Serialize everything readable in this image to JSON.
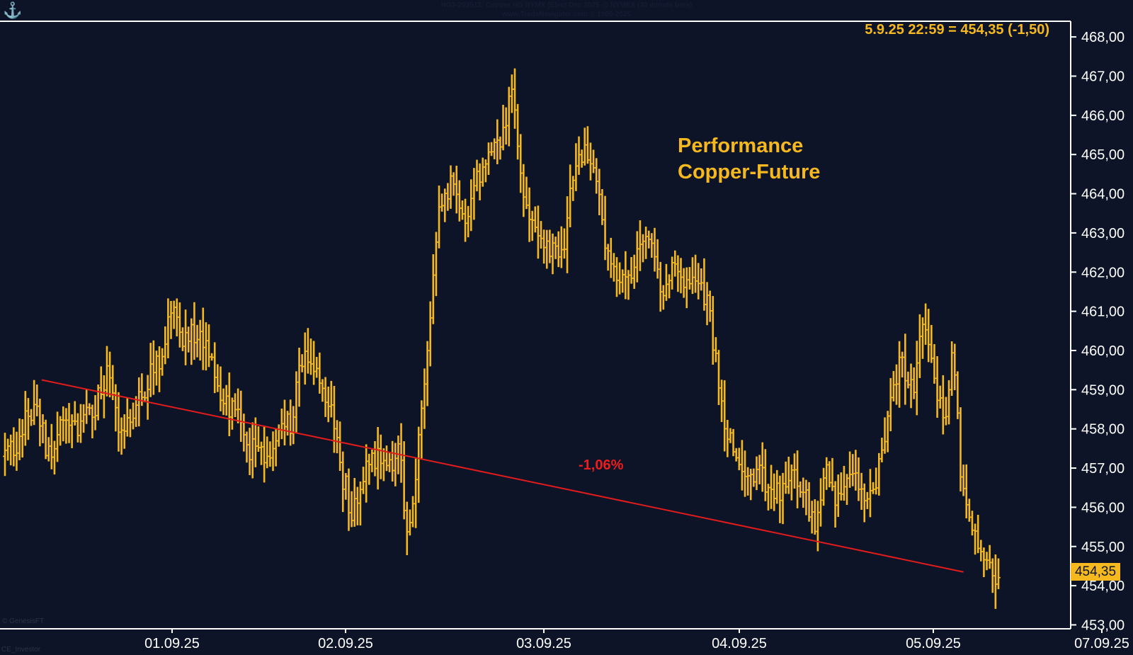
{
  "header": {
    "line1": "HG3-202512:  Copper HG NYMX (Elec) Dec 2025 @ NYMEX  (30 minute bars)",
    "line2": "www.TradeNavigator.com © 1999-2025"
  },
  "readout": "5.9.25 22:59 = 454,35 (-1,50)",
  "annotation": {
    "line1": "Performance",
    "line2": "Copper-Future"
  },
  "trend": {
    "label": "-1,06%",
    "start": [
      1.8,
      459.25
    ],
    "end": [
      47.0,
      454.35
    ],
    "color": "#e31b1b"
  },
  "last_price_label": "454,35",
  "footer": {
    "source": "© GenesisFT",
    "byline": "CE_Investor"
  },
  "colors": {
    "background": "#0d1428",
    "bars": "#f5b81f",
    "axis": "#ffffff",
    "trend": "#e31b1b"
  },
  "chart_data": {
    "type": "ohlc",
    "x_axis_ticks": [
      "01.09.25",
      "02.09.25",
      "03.09.25",
      "04.09.25",
      "05.09.25",
      "07.09.25"
    ],
    "y_axis_ticks": [
      "453,00",
      "454,00",
      "455,00",
      "456,00",
      "457,00",
      "458,00",
      "459,00",
      "460,00",
      "461,00",
      "462,00",
      "463,00",
      "464,00",
      "465,00",
      "466,00",
      "467,00",
      "468,00"
    ],
    "ylim": [
      452.9,
      468.4
    ],
    "grid": false,
    "anchors": [
      [
        0.0,
        457.3
      ],
      [
        0.8,
        457.9
      ],
      [
        1.5,
        458.7
      ],
      [
        2.2,
        457.2
      ],
      [
        3.0,
        458.5
      ],
      [
        3.6,
        458.0
      ],
      [
        4.2,
        458.3
      ],
      [
        5.0,
        459.3
      ],
      [
        5.6,
        458.1
      ],
      [
        6.3,
        458.6
      ],
      [
        7.0,
        459.2
      ],
      [
        7.6,
        459.8
      ],
      [
        8.2,
        461.0
      ],
      [
        8.7,
        460.3
      ],
      [
        9.3,
        460.5
      ],
      [
        10.0,
        459.8
      ],
      [
        10.6,
        458.8
      ],
      [
        11.3,
        458.3
      ],
      [
        12.0,
        457.5
      ],
      [
        12.6,
        457.2
      ],
      [
        13.2,
        457.5
      ],
      [
        14.0,
        458.2
      ],
      [
        14.6,
        459.9
      ],
      [
        15.2,
        459.3
      ],
      [
        15.8,
        458.8
      ],
      [
        16.4,
        457.2
      ],
      [
        17.0,
        455.8
      ],
      [
        17.6,
        456.9
      ],
      [
        18.2,
        457.3
      ],
      [
        18.8,
        456.8
      ],
      [
        19.3,
        457.5
      ],
      [
        19.8,
        455.1
      ],
      [
        20.3,
        457.6
      ],
      [
        20.8,
        460.6
      ],
      [
        21.3,
        463.5
      ],
      [
        21.9,
        464.5
      ],
      [
        22.5,
        463.3
      ],
      [
        23.1,
        464.3
      ],
      [
        23.7,
        464.8
      ],
      [
        24.3,
        465.2
      ],
      [
        24.9,
        466.7
      ],
      [
        25.5,
        463.8
      ],
      [
        26.1,
        462.8
      ],
      [
        26.7,
        462.6
      ],
      [
        27.3,
        462.3
      ],
      [
        27.9,
        464.8
      ],
      [
        28.5,
        465.3
      ],
      [
        29.1,
        463.8
      ],
      [
        29.7,
        462.2
      ],
      [
        30.3,
        461.6
      ],
      [
        30.9,
        462.3
      ],
      [
        31.5,
        462.9
      ],
      [
        32.1,
        461.5
      ],
      [
        32.7,
        462.2
      ],
      [
        33.3,
        461.4
      ],
      [
        33.9,
        461.8
      ],
      [
        34.5,
        461.2
      ],
      [
        35.1,
        458.6
      ],
      [
        35.7,
        457.3
      ],
      [
        36.3,
        456.8
      ],
      [
        36.9,
        456.9
      ],
      [
        37.5,
        456.5
      ],
      [
        38.1,
        456.2
      ],
      [
        38.6,
        457.1
      ],
      [
        39.1,
        456.5
      ],
      [
        39.7,
        455.7
      ],
      [
        40.3,
        456.9
      ],
      [
        40.9,
        456.1
      ],
      [
        41.5,
        456.7
      ],
      [
        42.1,
        456.3
      ],
      [
        42.7,
        456.5
      ],
      [
        43.3,
        458.2
      ],
      [
        43.9,
        459.6
      ],
      [
        44.5,
        459.0
      ],
      [
        45.0,
        460.6
      ],
      [
        45.6,
        459.0
      ],
      [
        46.1,
        458.3
      ],
      [
        46.5,
        460.5
      ],
      [
        46.8,
        457.2
      ],
      [
        47.3,
        455.8
      ],
      [
        47.8,
        455.1
      ],
      [
        48.3,
        454.3
      ],
      [
        48.8,
        454.35
      ]
    ]
  }
}
